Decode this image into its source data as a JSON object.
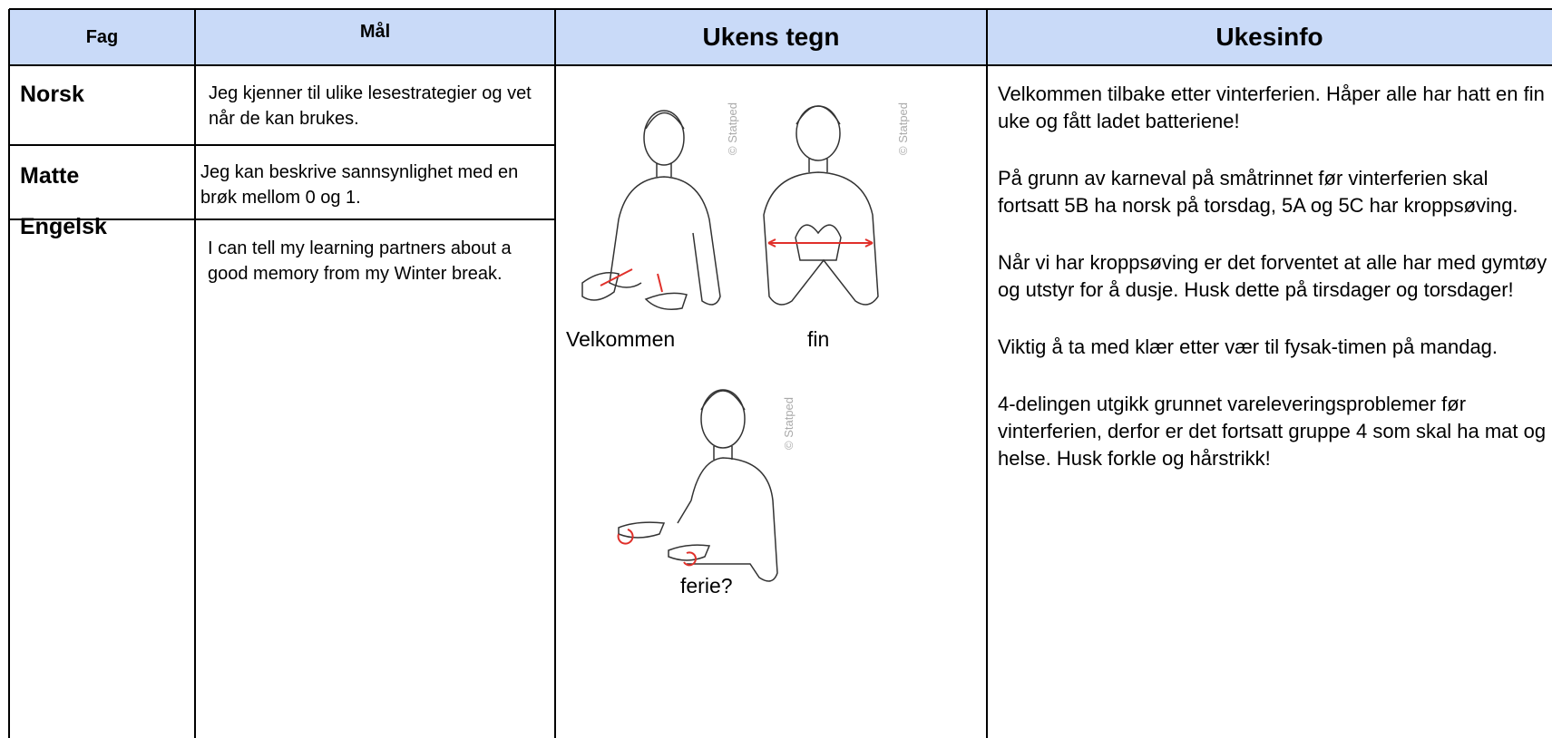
{
  "table": {
    "headers": [
      "Fag",
      "Mål",
      "Ukens tegn",
      "Ukesinfo"
    ],
    "rows": [
      [
        "Norsk",
        "Jeg kjenner til ulike lesestrategier og vet når de kan brukes."
      ],
      [
        "Matte",
        "Jeg kan beskrive sannsynlighet med en brøk mellom 0 og 1."
      ],
      [
        "Engelsk",
        "I can tell my learning partners about a good memory from my Winter break."
      ]
    ]
  },
  "signs": [
    {
      "caption": "Velkommen",
      "credit": "© Statped"
    },
    {
      "caption": "fin",
      "credit": "© Statped"
    },
    {
      "caption": "ferie?",
      "credit": "© Statped"
    }
  ],
  "info": [
    "Velkommen tilbake etter vinterferien. Håper alle har hatt en fin uke og fått ladet batteriene!",
    "På grunn av karneval på småtrinnet før vinterferien skal fortsatt 5B ha norsk på torsdag, 5A og 5C har kroppsøving.",
    "Når vi har kroppsøving er det forventet at alle har med gymtøy og utstyr for å dusje. Husk dette på tirsdager og torsdager!",
    "Viktig å ta med klær etter vær til fysak-timen på mandag.",
    "4-delingen utgikk grunnet vareleveringsproblemer før vinterferien, derfor er det fortsatt gruppe 4 som skal ha mat og helse. Husk forkle og hårstrikk!"
  ]
}
